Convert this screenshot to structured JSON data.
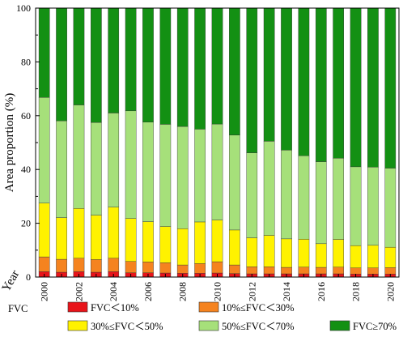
{
  "chart_data": {
    "type": "bar",
    "stacked": true,
    "title": "",
    "xlabel": "Year",
    "ylabel": "Area proportion (%)",
    "ylim": [
      0,
      100
    ],
    "yticks": [
      0,
      20,
      40,
      60,
      80,
      100
    ],
    "grid": false,
    "legend_position": "bottom",
    "legend_title": "FVC",
    "categories": [
      "2000",
      "2001",
      "2002",
      "2003",
      "2004",
      "2005",
      "2006",
      "2007",
      "2008",
      "2009",
      "2010",
      "2011",
      "2012",
      "2013",
      "2014",
      "2015",
      "2016",
      "2017",
      "2018",
      "2019",
      "2020"
    ],
    "x_tick_labels": [
      "2000",
      "",
      "2002",
      "",
      "2004",
      "",
      "2006",
      "",
      "2008",
      "",
      "2010",
      "",
      "2012",
      "",
      "2014",
      "",
      "2016",
      "",
      "2018",
      "",
      "2020"
    ],
    "series": [
      {
        "name": "FVC＜10%",
        "color": "#e8141a",
        "values": [
          2.0,
          1.8,
          2.0,
          1.8,
          2.0,
          1.6,
          1.6,
          1.5,
          1.4,
          1.4,
          1.5,
          1.3,
          1.2,
          1.2,
          1.2,
          1.2,
          1.2,
          1.2,
          1.1,
          1.1,
          1.1
        ]
      },
      {
        "name": "10%≤FVC＜30%",
        "color": "#f5831f",
        "values": [
          5.5,
          4.8,
          5.0,
          4.7,
          5.0,
          4.2,
          4.0,
          3.8,
          3.1,
          3.6,
          4.2,
          3.2,
          2.6,
          2.6,
          2.4,
          2.5,
          2.4,
          2.5,
          2.3,
          2.3,
          2.4
        ]
      },
      {
        "name": "30%≤FVC＜50%",
        "color": "#fff200",
        "values": [
          20.0,
          15.5,
          18.5,
          16.5,
          19.0,
          16.0,
          15.0,
          13.5,
          13.5,
          15.5,
          15.5,
          13.0,
          10.8,
          11.7,
          10.6,
          10.4,
          8.8,
          10.3,
          8.3,
          8.4,
          7.6
        ]
      },
      {
        "name": "50%≤FVC＜70%",
        "color": "#a6e07a",
        "values": [
          39.3,
          36.0,
          38.5,
          34.5,
          35.0,
          40.0,
          37.0,
          38.0,
          38.0,
          34.5,
          35.7,
          35.3,
          31.6,
          35.0,
          33.0,
          31.0,
          30.5,
          30.2,
          29.3,
          29.1,
          29.4
        ]
      },
      {
        "name": "FVC≥70%",
        "color": "#139013",
        "values": [
          33.2,
          41.9,
          36.0,
          42.5,
          39.0,
          38.2,
          42.4,
          43.2,
          44.0,
          45.0,
          43.1,
          47.2,
          53.8,
          49.5,
          52.8,
          54.9,
          57.1,
          55.8,
          59.0,
          59.1,
          59.5
        ]
      }
    ]
  }
}
